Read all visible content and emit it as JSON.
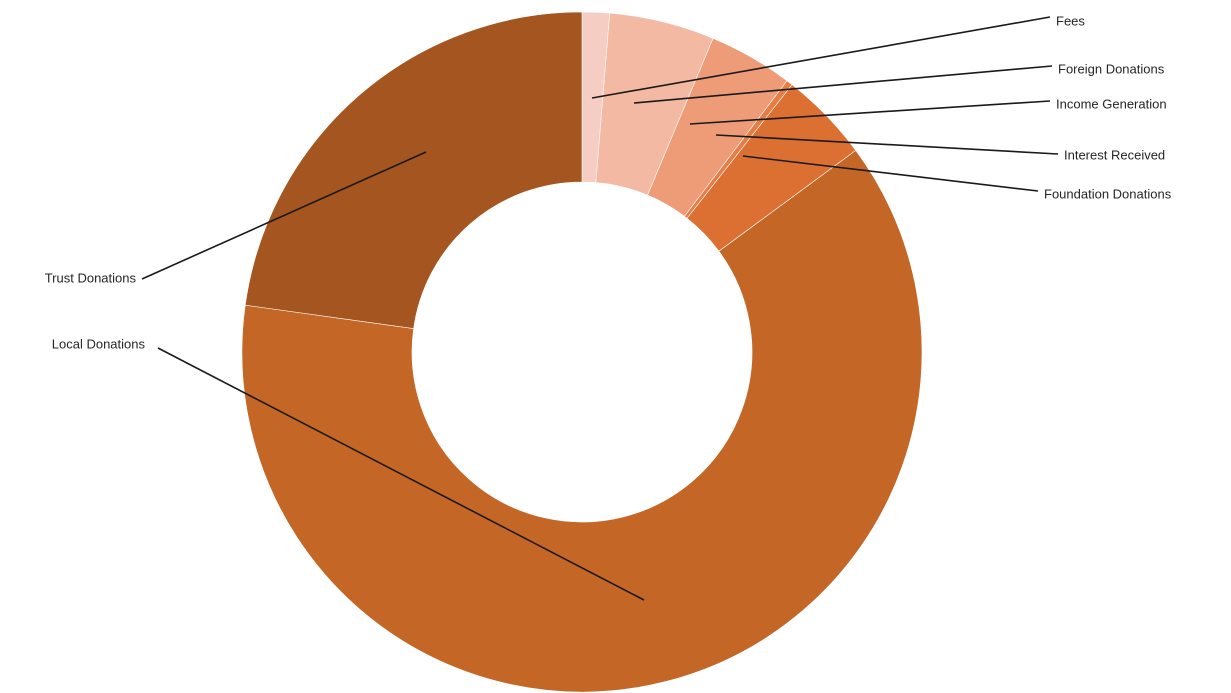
{
  "chart_data": {
    "type": "pie",
    "style": "donut",
    "title": "",
    "categories": [
      "Fees",
      "Foreign Donations",
      "Income Generation",
      "Interest Received",
      "Foundation Donations",
      "Local Donations",
      "Trust Donations"
    ],
    "values": [
      1.3,
      5.0,
      4.0,
      0.3,
      4.3,
      62.3,
      22.8
    ],
    "unit": "%",
    "colors": [
      "#f5cdc2",
      "#f3b9a2",
      "#ee9c78",
      "#e67d45",
      "#dc7032",
      "#c36626",
      "#a45520"
    ],
    "data_labels": false,
    "legend": "none",
    "label_style": "category-name-callouts"
  }
}
